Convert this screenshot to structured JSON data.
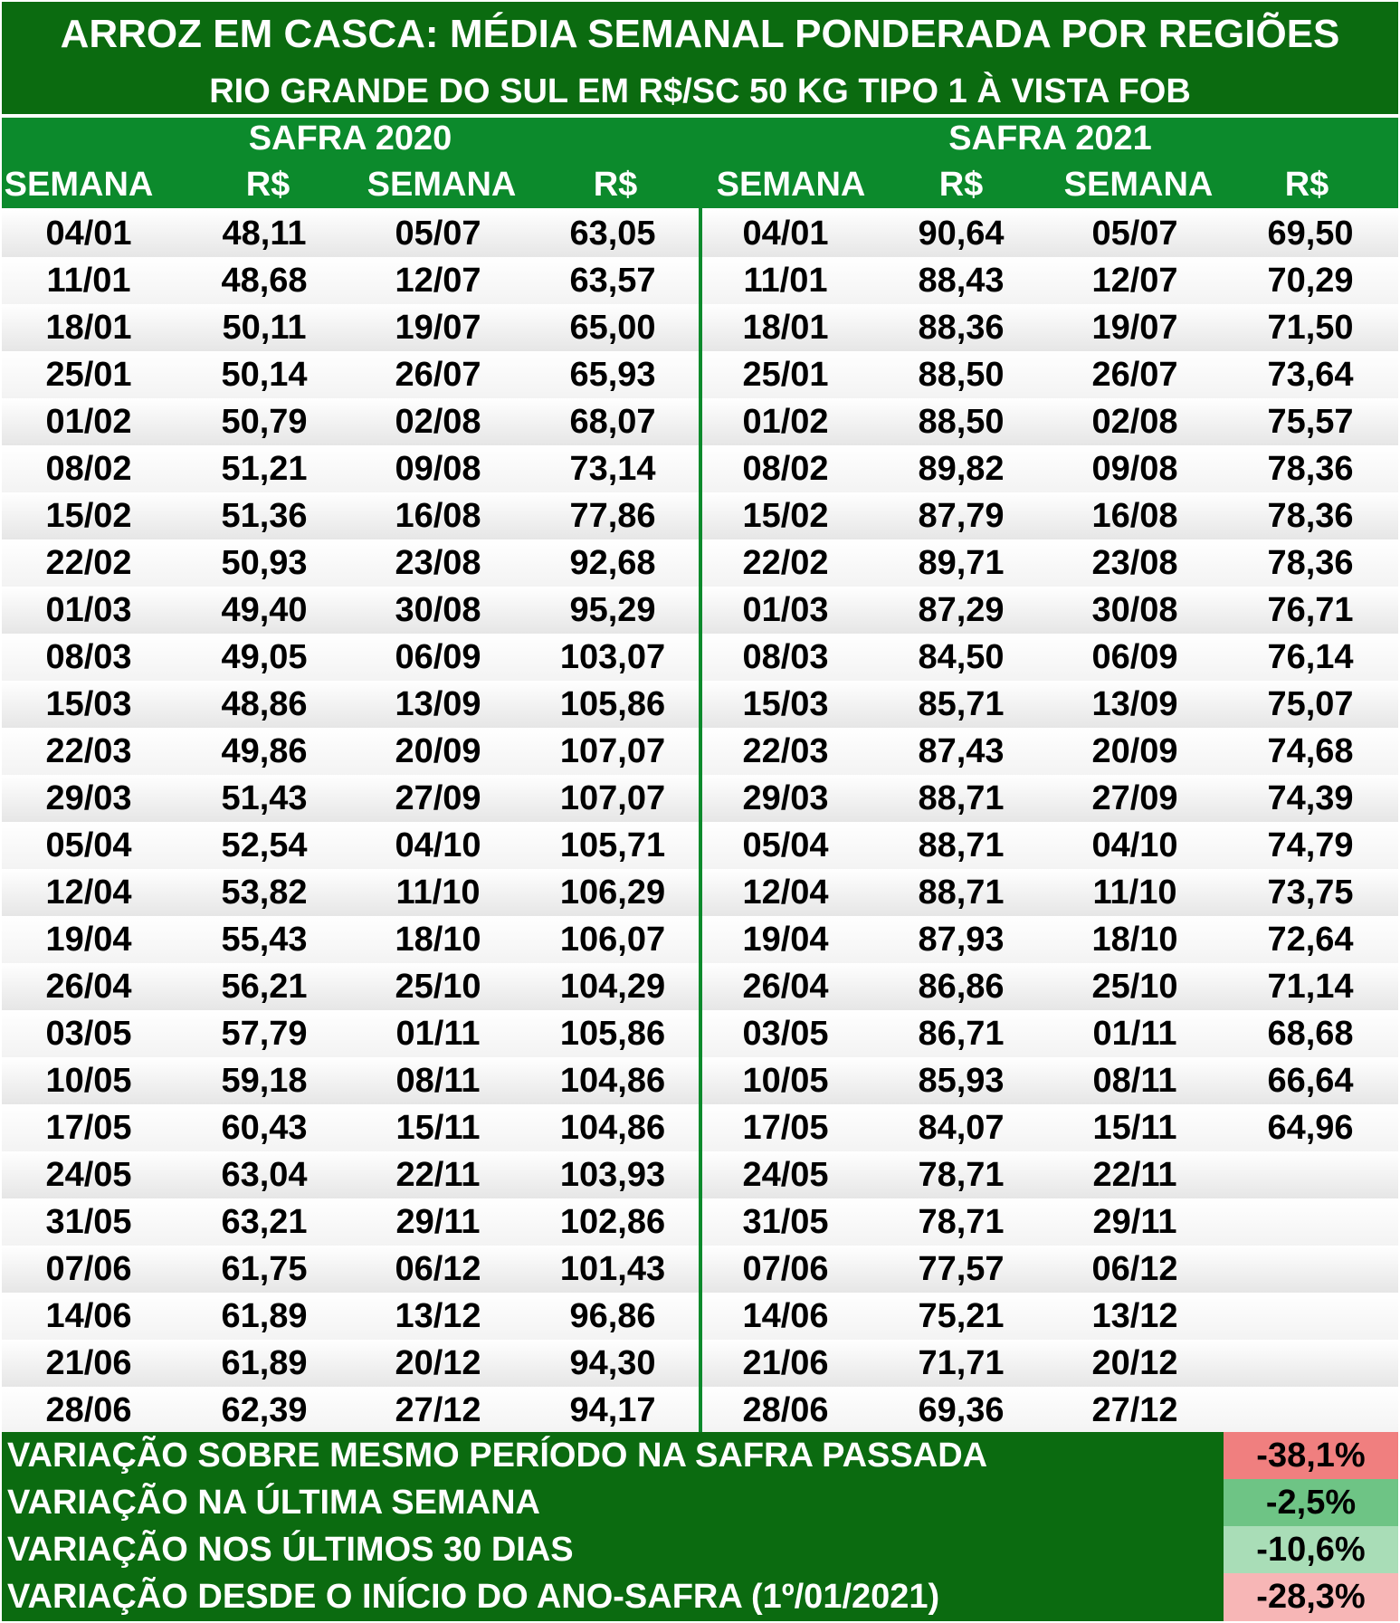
{
  "title": {
    "line1": "ARROZ EM CASCA: MÉDIA SEMANAL PONDERADA POR REGIÕES",
    "line2": "RIO GRANDE DO SUL EM R$/SC 50 KG TIPO 1 À VISTA FOB"
  },
  "safra_2020": {
    "label": "SAFRA 2020",
    "col_semana": "SEMANA",
    "col_rs": "R$"
  },
  "safra_2021": {
    "label": "SAFRA 2021",
    "col_semana": "SEMANA",
    "col_rs": "R$"
  },
  "rows": [
    [
      "04/01",
      "48,11",
      "05/07",
      "63,05",
      "04/01",
      "90,64",
      "05/07",
      "69,50"
    ],
    [
      "11/01",
      "48,68",
      "12/07",
      "63,57",
      "11/01",
      "88,43",
      "12/07",
      "70,29"
    ],
    [
      "18/01",
      "50,11",
      "19/07",
      "65,00",
      "18/01",
      "88,36",
      "19/07",
      "71,50"
    ],
    [
      "25/01",
      "50,14",
      "26/07",
      "65,93",
      "25/01",
      "88,50",
      "26/07",
      "73,64"
    ],
    [
      "01/02",
      "50,79",
      "02/08",
      "68,07",
      "01/02",
      "88,50",
      "02/08",
      "75,57"
    ],
    [
      "08/02",
      "51,21",
      "09/08",
      "73,14",
      "08/02",
      "89,82",
      "09/08",
      "78,36"
    ],
    [
      "15/02",
      "51,36",
      "16/08",
      "77,86",
      "15/02",
      "87,79",
      "16/08",
      "78,36"
    ],
    [
      "22/02",
      "50,93",
      "23/08",
      "92,68",
      "22/02",
      "89,71",
      "23/08",
      "78,36"
    ],
    [
      "01/03",
      "49,40",
      "30/08",
      "95,29",
      "01/03",
      "87,29",
      "30/08",
      "76,71"
    ],
    [
      "08/03",
      "49,05",
      "06/09",
      "103,07",
      "08/03",
      "84,50",
      "06/09",
      "76,14"
    ],
    [
      "15/03",
      "48,86",
      "13/09",
      "105,86",
      "15/03",
      "85,71",
      "13/09",
      "75,07"
    ],
    [
      "22/03",
      "49,86",
      "20/09",
      "107,07",
      "22/03",
      "87,43",
      "20/09",
      "74,68"
    ],
    [
      "29/03",
      "51,43",
      "27/09",
      "107,07",
      "29/03",
      "88,71",
      "27/09",
      "74,39"
    ],
    [
      "05/04",
      "52,54",
      "04/10",
      "105,71",
      "05/04",
      "88,71",
      "04/10",
      "74,79"
    ],
    [
      "12/04",
      "53,82",
      "11/10",
      "106,29",
      "12/04",
      "88,71",
      "11/10",
      "73,75"
    ],
    [
      "19/04",
      "55,43",
      "18/10",
      "106,07",
      "19/04",
      "87,93",
      "18/10",
      "72,64"
    ],
    [
      "26/04",
      "56,21",
      "25/10",
      "104,29",
      "26/04",
      "86,86",
      "25/10",
      "71,14"
    ],
    [
      "03/05",
      "57,79",
      "01/11",
      "105,86",
      "03/05",
      "86,71",
      "01/11",
      "68,68"
    ],
    [
      "10/05",
      "59,18",
      "08/11",
      "104,86",
      "10/05",
      "85,93",
      "08/11",
      "66,64"
    ],
    [
      "17/05",
      "60,43",
      "15/11",
      "104,86",
      "17/05",
      "84,07",
      "15/11",
      "64,96"
    ],
    [
      "24/05",
      "63,04",
      "22/11",
      "103,93",
      "24/05",
      "78,71",
      "22/11",
      ""
    ],
    [
      "31/05",
      "63,21",
      "29/11",
      "102,86",
      "31/05",
      "78,71",
      "29/11",
      ""
    ],
    [
      "07/06",
      "61,75",
      "06/12",
      "101,43",
      "07/06",
      "77,57",
      "06/12",
      ""
    ],
    [
      "14/06",
      "61,89",
      "13/12",
      "96,86",
      "14/06",
      "75,21",
      "13/12",
      ""
    ],
    [
      "21/06",
      "61,89",
      "20/12",
      "94,30",
      "21/06",
      "71,71",
      "20/12",
      ""
    ],
    [
      "28/06",
      "62,39",
      "27/12",
      "94,17",
      "28/06",
      "69,36",
      "27/12",
      ""
    ]
  ],
  "variations": [
    {
      "label": "VARIAÇÃO SOBRE MESMO PERÍODO NA SAFRA PASSADA",
      "value": "-38,1%",
      "color": "#f07f7f"
    },
    {
      "label": "VARIAÇÃO NA ÚLTIMA SEMANA",
      "value": "-2,5%",
      "color": "#6ec485"
    },
    {
      "label": "VARIAÇÃO NOS ÚLTIMOS 30 DIAS",
      "value": "-10,6%",
      "color": "#a9ddb7"
    },
    {
      "label": "VARIAÇÃO DESDE O INÍCIO DO ANO-SAFRA (1º/01/2021)",
      "value": "-28,3%",
      "color": "#f7b6b6"
    }
  ]
}
